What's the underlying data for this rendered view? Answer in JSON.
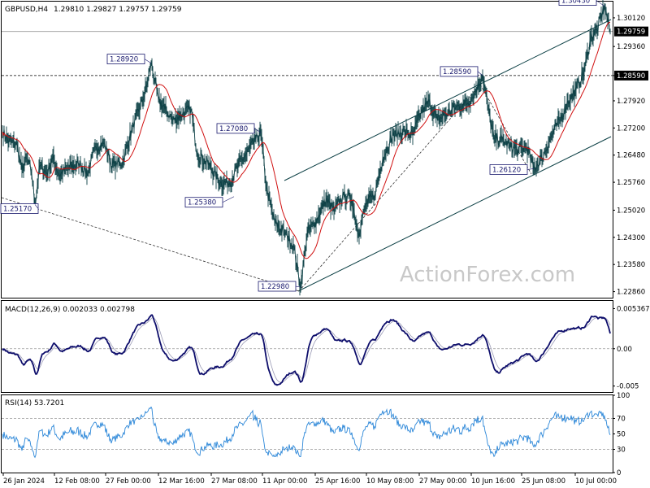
{
  "header": {
    "symbol": "GBPUSD,H4",
    "ohlc": "1.29810 1.29827 1.29757 1.29759"
  },
  "watermark": "ActionForex.com",
  "chart_data": [
    {
      "type": "line",
      "title": "GBPUSD,H4  1.29810 1.29827 1.29757 1.29759",
      "y_ticks": [
        "1.30120",
        "1.29360",
        "1.28590",
        "1.27920",
        "1.27200",
        "1.26480",
        "1.25760",
        "1.25020",
        "1.24300",
        "1.23580",
        "1.22860"
      ],
      "ylim": [
        1.227,
        1.3055
      ],
      "x_ticks": [
        "26 Jan 2024",
        "12 Feb 08:00",
        "27 Feb 00:00",
        "12 Mar 16:00",
        "27 Mar 08:00",
        "11 Apr 00:00",
        "25 Apr 16:00",
        "10 May 08:00",
        "27 May 00:00",
        "10 Jun 16:00",
        "25 Jun 08:00",
        "10 Jul 00:00"
      ],
      "current_price": "1.29759",
      "horizontal_level": "1.28590",
      "annotations": [
        "1.30430",
        "1.28920",
        "1.28590",
        "1.27080",
        "1.26120",
        "1.25380",
        "1.25170",
        "1.22980"
      ],
      "anchors": [
        {
          "t": 0,
          "v": 1.271
        },
        {
          "t": 8,
          "v": 1.2685
        },
        {
          "t": 18,
          "v": 1.2675
        },
        {
          "t": 24,
          "v": 1.2608
        },
        {
          "t": 30,
          "v": 1.264
        },
        {
          "t": 36,
          "v": 1.26
        },
        {
          "t": 40,
          "v": 1.2517
        },
        {
          "t": 46,
          "v": 1.262
        },
        {
          "t": 55,
          "v": 1.26
        },
        {
          "t": 62,
          "v": 1.264
        },
        {
          "t": 70,
          "v": 1.2595
        },
        {
          "t": 82,
          "v": 1.2615
        },
        {
          "t": 95,
          "v": 1.2625
        },
        {
          "t": 105,
          "v": 1.26
        },
        {
          "t": 115,
          "v": 1.267
        },
        {
          "t": 125,
          "v": 1.268
        },
        {
          "t": 135,
          "v": 1.262
        },
        {
          "t": 148,
          "v": 1.263
        },
        {
          "t": 160,
          "v": 1.272
        },
        {
          "t": 172,
          "v": 1.279
        },
        {
          "t": 178,
          "v": 1.2835
        },
        {
          "t": 183,
          "v": 1.2892
        },
        {
          "t": 192,
          "v": 1.2795
        },
        {
          "t": 200,
          "v": 1.277
        },
        {
          "t": 210,
          "v": 1.274
        },
        {
          "t": 220,
          "v": 1.2755
        },
        {
          "t": 232,
          "v": 1.277
        },
        {
          "t": 240,
          "v": 1.265
        },
        {
          "t": 255,
          "v": 1.262
        },
        {
          "t": 268,
          "v": 1.2575
        },
        {
          "t": 280,
          "v": 1.2575
        },
        {
          "t": 290,
          "v": 1.262
        },
        {
          "t": 300,
          "v": 1.265
        },
        {
          "t": 312,
          "v": 1.269
        },
        {
          "t": 318,
          "v": 1.2708
        },
        {
          "t": 325,
          "v": 1.256
        },
        {
          "t": 335,
          "v": 1.247
        },
        {
          "t": 348,
          "v": 1.244
        },
        {
          "t": 358,
          "v": 1.241
        },
        {
          "t": 367,
          "v": 1.2298
        },
        {
          "t": 375,
          "v": 1.244
        },
        {
          "t": 385,
          "v": 1.247
        },
        {
          "t": 398,
          "v": 1.253
        },
        {
          "t": 408,
          "v": 1.25
        },
        {
          "t": 420,
          "v": 1.254
        },
        {
          "t": 430,
          "v": 1.253
        },
        {
          "t": 438,
          "v": 1.244
        },
        {
          "t": 448,
          "v": 1.252
        },
        {
          "t": 458,
          "v": 1.254
        },
        {
          "t": 468,
          "v": 1.264
        },
        {
          "t": 480,
          "v": 1.27
        },
        {
          "t": 495,
          "v": 1.271
        },
        {
          "t": 505,
          "v": 1.27
        },
        {
          "t": 515,
          "v": 1.276
        },
        {
          "t": 525,
          "v": 1.279
        },
        {
          "t": 535,
          "v": 1.274
        },
        {
          "t": 548,
          "v": 1.276
        },
        {
          "t": 558,
          "v": 1.2775
        },
        {
          "t": 568,
          "v": 1.278
        },
        {
          "t": 578,
          "v": 1.28
        },
        {
          "t": 591,
          "v": 1.2859
        },
        {
          "t": 598,
          "v": 1.277
        },
        {
          "t": 605,
          "v": 1.269
        },
        {
          "t": 615,
          "v": 1.269
        },
        {
          "t": 625,
          "v": 1.267
        },
        {
          "t": 635,
          "v": 1.266
        },
        {
          "t": 645,
          "v": 1.267
        },
        {
          "t": 654,
          "v": 1.2612
        },
        {
          "t": 664,
          "v": 1.264
        },
        {
          "t": 676,
          "v": 1.27
        },
        {
          "t": 686,
          "v": 1.274
        },
        {
          "t": 696,
          "v": 1.279
        },
        {
          "t": 706,
          "v": 1.282
        },
        {
          "t": 716,
          "v": 1.287
        },
        {
          "t": 724,
          "v": 1.296
        },
        {
          "t": 732,
          "v": 1.298
        },
        {
          "t": 741,
          "v": 1.3043
        },
        {
          "t": 748,
          "v": 1.2976
        }
      ]
    },
    {
      "type": "line",
      "title": "MACD(12,26,9) 0.002033 0.002798",
      "y_ticks": [
        "0.005367",
        "0.00",
        "-0.005"
      ],
      "ylim": [
        -0.0058,
        0.0064
      ]
    },
    {
      "type": "line",
      "title": "RSI(14) 53.7201",
      "y_ticks": [
        "100",
        "70",
        "50",
        "30",
        "0"
      ],
      "ylim": [
        0,
        100
      ]
    }
  ]
}
